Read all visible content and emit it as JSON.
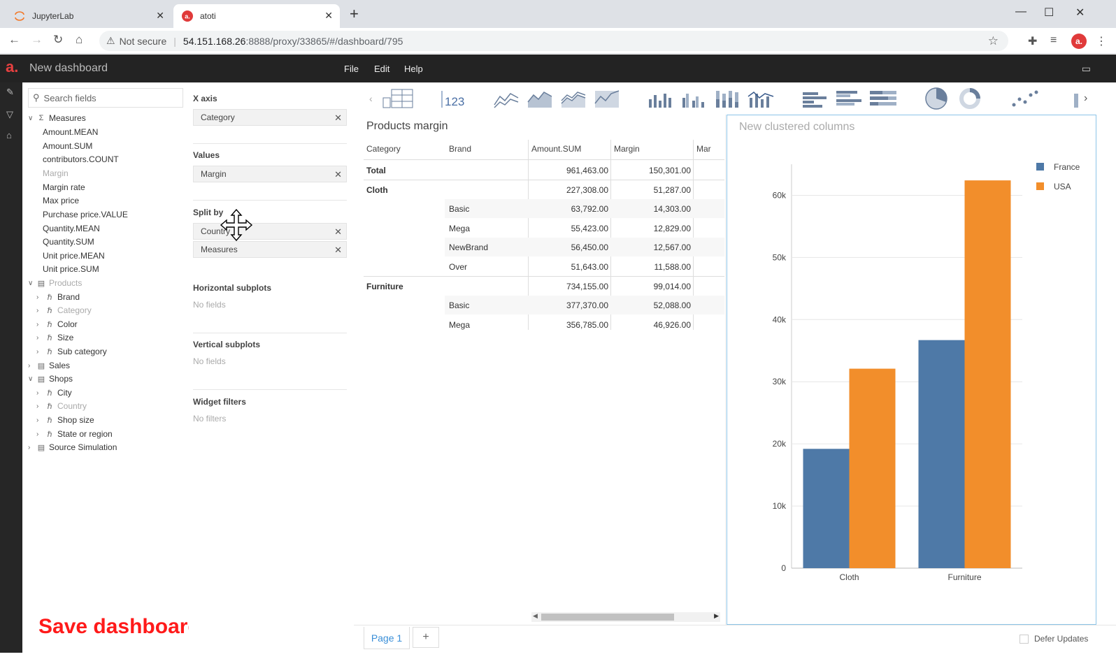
{
  "browser": {
    "tabs": [
      {
        "title": "JupyterLab",
        "active": false
      },
      {
        "title": "atoti",
        "active": true
      }
    ],
    "not_secure_label": "Not secure",
    "url_host": "54.151.168.26",
    "url_rest": ":8888/proxy/33865/#/dashboard/795"
  },
  "app": {
    "logo": "a.",
    "title": "New dashboard",
    "menu": [
      "File",
      "Edit",
      "Help"
    ]
  },
  "fields": {
    "search_placeholder": "Search fields",
    "measures_label": "Measures",
    "measures": [
      "Amount.MEAN",
      "Amount.SUM",
      "contributors.COUNT",
      "Margin",
      "Margin rate",
      "Max price",
      "Purchase price.VALUE",
      "Quantity.MEAN",
      "Quantity.SUM",
      "Unit price.MEAN",
      "Unit price.SUM"
    ],
    "products_label": "Products",
    "products": [
      "Brand",
      "Category",
      "Color",
      "Size",
      "Sub category"
    ],
    "sales_label": "Sales",
    "shops_label": "Shops",
    "shops": [
      "City",
      "Country",
      "Shop size",
      "State or region"
    ],
    "source_label": "Source Simulation"
  },
  "wizard": {
    "x_axis_label": "X axis",
    "x_axis_value": "Category",
    "values_label": "Values",
    "values_value": "Margin",
    "split_by_label": "Split by",
    "split_by_values": [
      "Country",
      "Measures"
    ],
    "hsub_label": "Horizontal subplots",
    "hsub_value": "No fields",
    "vsub_label": "Vertical subplots",
    "vsub_value": "No fields",
    "filters_label": "Widget filters",
    "filters_value": "No filters"
  },
  "table": {
    "title": "Products margin",
    "headers": [
      "Category",
      "Brand",
      "Amount.SUM",
      "Margin",
      "Mar"
    ],
    "rows": [
      {
        "category": "Total",
        "brand": "",
        "amount": "961,463.00",
        "margin": "150,301.00"
      },
      {
        "category": "Cloth",
        "brand": "",
        "amount": "227,308.00",
        "margin": "51,287.00"
      },
      {
        "category": "",
        "brand": "Basic",
        "amount": "63,792.00",
        "margin": "14,303.00"
      },
      {
        "category": "",
        "brand": "Mega",
        "amount": "55,423.00",
        "margin": "12,829.00"
      },
      {
        "category": "",
        "brand": "NewBrand",
        "amount": "56,450.00",
        "margin": "12,567.00"
      },
      {
        "category": "",
        "brand": "Over",
        "amount": "51,643.00",
        "margin": "11,588.00"
      },
      {
        "category": "Furniture",
        "brand": "",
        "amount": "734,155.00",
        "margin": "99,014.00"
      },
      {
        "category": "",
        "brand": "Basic",
        "amount": "377,370.00",
        "margin": "52,088.00"
      },
      {
        "category": "",
        "brand": "Mega",
        "amount": "356,785.00",
        "margin": "46,926.00"
      }
    ]
  },
  "chart_data": {
    "type": "bar",
    "title": "New clustered columns",
    "categories": [
      "Cloth",
      "Furniture"
    ],
    "series": [
      {
        "name": "France",
        "values": [
          19200,
          36700
        ],
        "color": "#4e79a7"
      },
      {
        "name": "USA",
        "values": [
          32100,
          62400
        ],
        "color": "#f28e2b"
      }
    ],
    "ylim": [
      0,
      65000
    ],
    "yticks": [
      0,
      10000,
      20000,
      30000,
      40000,
      50000,
      60000
    ],
    "ytick_labels": [
      "0",
      "10k",
      "20k",
      "30k",
      "40k",
      "50k",
      "60k"
    ],
    "grid": true,
    "legend": "top-right",
    "xlabel": "",
    "ylabel": ""
  },
  "footer": {
    "page_label": "Page 1",
    "add_label": "+",
    "defer_label": "Defer Updates"
  },
  "overlay": {
    "save_label": "Save dashboard"
  }
}
